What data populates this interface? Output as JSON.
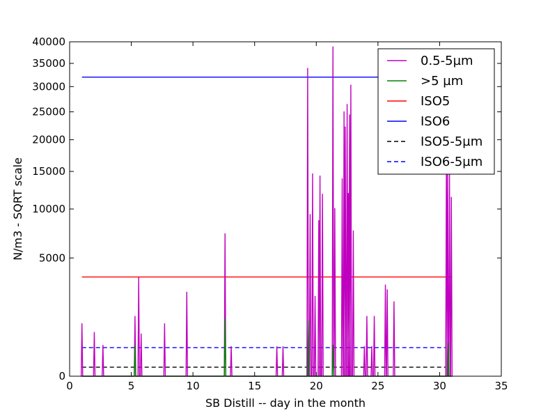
{
  "chart_data": {
    "type": "line",
    "xlabel": "SB Distill -- day in the month",
    "ylabel": "N/m3 - SQRT scale",
    "xlim": [
      0,
      35
    ],
    "ylim": [
      0,
      40000
    ],
    "y_scale": "sqrt",
    "x_ticks": [
      0,
      5,
      10,
      15,
      20,
      25,
      30,
      35
    ],
    "y_ticks": [
      0,
      5000,
      10000,
      15000,
      20000,
      25000,
      30000,
      35000,
      40000
    ],
    "grid": false,
    "legend_position": "top-right",
    "legend": [
      "0.5-5µm",
      ">5 µm",
      "ISO5",
      "ISO6",
      "ISO5-5µm",
      "ISO6-5µm"
    ],
    "series": [
      {
        "name": "0.5-5µm",
        "color": "#bf00bf",
        "style": "solid",
        "peaks": [
          [
            1.0,
            1000
          ],
          [
            2.0,
            700
          ],
          [
            2.7,
            350
          ],
          [
            5.3,
            1300
          ],
          [
            5.6,
            3500
          ],
          [
            5.8,
            650
          ],
          [
            7.7,
            1000
          ],
          [
            9.5,
            2550
          ],
          [
            12.6,
            7300
          ],
          [
            13.1,
            320
          ],
          [
            16.8,
            320
          ],
          [
            17.3,
            320
          ],
          [
            19.3,
            34000
          ],
          [
            19.5,
            9400
          ],
          [
            19.7,
            14700
          ],
          [
            19.9,
            2300
          ],
          [
            20.2,
            8700
          ],
          [
            20.3,
            14400
          ],
          [
            20.5,
            11900
          ],
          [
            21.35,
            38900
          ],
          [
            21.5,
            10100
          ],
          [
            22.1,
            14000
          ],
          [
            22.25,
            25100
          ],
          [
            22.35,
            22300
          ],
          [
            22.5,
            26500
          ],
          [
            22.6,
            12000
          ],
          [
            22.7,
            24500
          ],
          [
            22.8,
            30400
          ],
          [
            23.0,
            7600
          ],
          [
            23.9,
            320
          ],
          [
            24.1,
            1300
          ],
          [
            24.5,
            320
          ],
          [
            24.7,
            1300
          ],
          [
            25.6,
            3000
          ],
          [
            25.75,
            2700
          ],
          [
            26.3,
            2000
          ],
          [
            30.55,
            17000
          ],
          [
            30.65,
            15200
          ],
          [
            30.8,
            14800
          ],
          [
            30.95,
            11500
          ]
        ]
      },
      {
        "name": ">5 µm",
        "color": "#008000",
        "style": "solid",
        "peaks": [
          [
            5.3,
            350
          ],
          [
            12.6,
            1200
          ],
          [
            19.35,
            1100
          ],
          [
            21.35,
            350
          ],
          [
            30.7,
            400
          ]
        ]
      },
      {
        "name": "ISO5",
        "color": "#ff0000",
        "style": "solid",
        "x": [
          1,
          31
        ],
        "value": 3520
      },
      {
        "name": "ISO6",
        "color": "#0000ff",
        "style": "solid",
        "x": [
          1,
          31
        ],
        "value": 32000
      },
      {
        "name": "ISO5-5µm",
        "color": "#000000",
        "style": "dashed",
        "x": [
          1,
          30.5
        ],
        "value": 29
      },
      {
        "name": "ISO6-5µm",
        "color": "#0000ff",
        "style": "dashed",
        "x": [
          1,
          30.5
        ],
        "value": 293
      }
    ]
  }
}
